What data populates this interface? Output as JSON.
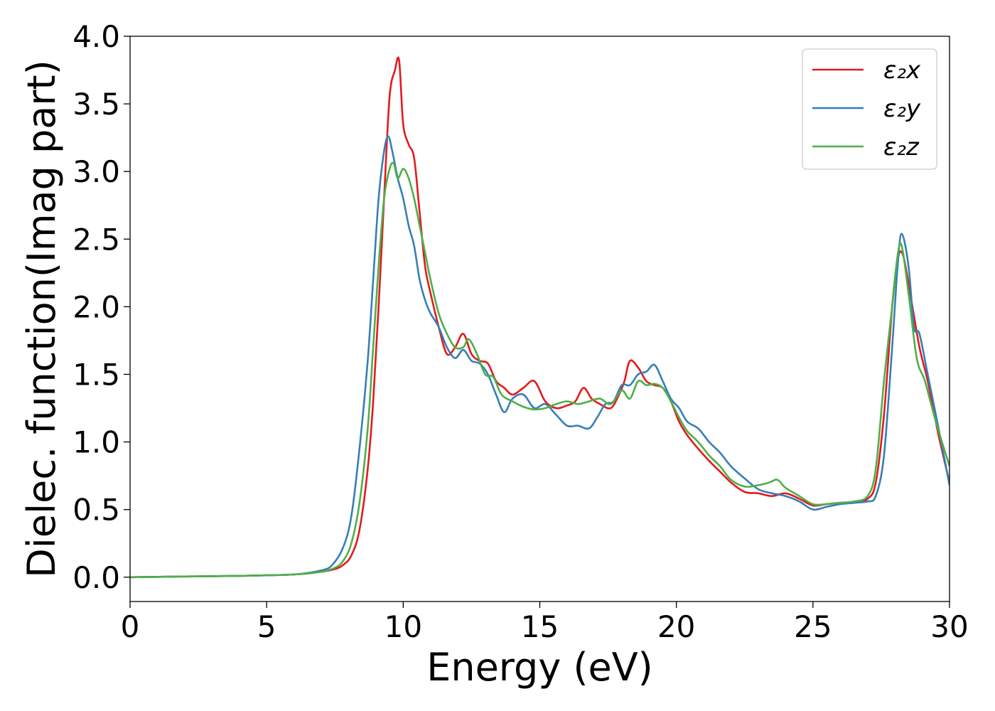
{
  "chart_data": {
    "type": "line",
    "title": "",
    "xlabel": "Energy (eV)",
    "ylabel": "Dielec. function(Imag part)",
    "xlim": [
      0,
      30
    ],
    "ylim": [
      -0.18,
      4.0
    ],
    "xticks": [
      0,
      5,
      10,
      15,
      20,
      25,
      30
    ],
    "yticks": [
      0.0,
      0.5,
      1.0,
      1.5,
      2.0,
      2.5,
      3.0,
      3.5,
      4.0
    ],
    "xtick_labels": [
      "0",
      "5",
      "10",
      "15",
      "20",
      "25",
      "30"
    ],
    "ytick_labels": [
      "0.0",
      "0.5",
      "1.0",
      "1.5",
      "2.0",
      "2.5",
      "3.0",
      "3.5",
      "4.0"
    ],
    "grid": false,
    "legend_position": "top-right",
    "series": [
      {
        "name": "ε₂x",
        "color": "#e41a1c",
        "x": [
          0,
          2,
          4,
          6,
          7,
          7.5,
          7.8,
          8.1,
          8.4,
          8.7,
          8.9,
          9.1,
          9.3,
          9.5,
          9.7,
          9.85,
          10.0,
          10.2,
          10.4,
          10.6,
          10.8,
          11.0,
          11.3,
          11.6,
          11.9,
          12.2,
          12.5,
          12.8,
          13.1,
          13.4,
          13.7,
          14.0,
          14.4,
          14.8,
          15.2,
          15.6,
          16.0,
          16.3,
          16.6,
          16.9,
          17.2,
          17.6,
          17.9,
          18.1,
          18.3,
          18.6,
          18.9,
          19.2,
          19.5,
          19.8,
          20.1,
          20.4,
          20.8,
          21.2,
          21.6,
          22.0,
          22.5,
          23.0,
          23.5,
          24.0,
          24.5,
          25.0,
          25.5,
          26.0,
          26.5,
          27.0,
          27.3,
          27.6,
          27.9,
          28.1,
          28.3,
          28.6,
          28.9,
          29.2,
          29.6,
          30.0
        ],
        "y": [
          0.0,
          0.005,
          0.01,
          0.02,
          0.04,
          0.06,
          0.09,
          0.16,
          0.35,
          0.8,
          1.3,
          2.0,
          2.8,
          3.55,
          3.75,
          3.82,
          3.35,
          3.2,
          3.1,
          2.7,
          2.3,
          2.1,
          1.85,
          1.65,
          1.7,
          1.8,
          1.65,
          1.6,
          1.58,
          1.45,
          1.4,
          1.35,
          1.4,
          1.45,
          1.3,
          1.25,
          1.27,
          1.3,
          1.4,
          1.32,
          1.28,
          1.25,
          1.35,
          1.45,
          1.6,
          1.55,
          1.45,
          1.42,
          1.4,
          1.3,
          1.15,
          1.05,
          0.95,
          0.86,
          0.78,
          0.7,
          0.63,
          0.62,
          0.6,
          0.62,
          0.58,
          0.53,
          0.54,
          0.55,
          0.55,
          0.58,
          0.7,
          1.2,
          2.0,
          2.35,
          2.38,
          2.05,
          1.7,
          1.45,
          1.05,
          0.7
        ]
      },
      {
        "name": "ε₂y",
        "color": "#377eb8",
        "x": [
          0,
          2,
          4,
          6,
          7,
          7.4,
          7.8,
          8.1,
          8.4,
          8.7,
          8.9,
          9.1,
          9.3,
          9.45,
          9.6,
          9.8,
          10.0,
          10.2,
          10.4,
          10.6,
          10.8,
          11.0,
          11.3,
          11.6,
          11.9,
          12.2,
          12.5,
          12.8,
          13.1,
          13.4,
          13.7,
          14.0,
          14.4,
          14.8,
          15.2,
          15.6,
          16.0,
          16.4,
          16.8,
          17.1,
          17.4,
          17.7,
          18.0,
          18.3,
          18.6,
          18.9,
          19.2,
          19.5,
          19.8,
          20.1,
          20.4,
          20.8,
          21.2,
          21.6,
          22.0,
          22.5,
          23.0,
          23.5,
          24.0,
          24.5,
          25.0,
          25.5,
          26.0,
          26.5,
          27.0,
          27.3,
          27.6,
          27.9,
          28.1,
          28.25,
          28.5,
          28.7,
          28.9,
          29.2,
          29.6,
          30.0
        ],
        "y": [
          0.0,
          0.005,
          0.01,
          0.02,
          0.05,
          0.09,
          0.22,
          0.45,
          0.95,
          1.6,
          2.2,
          2.8,
          3.15,
          3.26,
          3.15,
          2.95,
          2.8,
          2.6,
          2.45,
          2.2,
          2.05,
          1.95,
          1.85,
          1.7,
          1.62,
          1.68,
          1.6,
          1.58,
          1.5,
          1.35,
          1.22,
          1.32,
          1.35,
          1.25,
          1.28,
          1.2,
          1.12,
          1.12,
          1.1,
          1.18,
          1.28,
          1.3,
          1.42,
          1.42,
          1.5,
          1.52,
          1.57,
          1.45,
          1.32,
          1.25,
          1.15,
          1.1,
          1.0,
          0.92,
          0.82,
          0.73,
          0.65,
          0.62,
          0.6,
          0.56,
          0.5,
          0.52,
          0.54,
          0.55,
          0.56,
          0.6,
          0.9,
          1.7,
          2.3,
          2.54,
          2.3,
          1.85,
          1.8,
          1.5,
          1.1,
          0.68
        ]
      },
      {
        "name": "ε₂z",
        "color": "#4daf4a",
        "x": [
          0,
          2,
          4,
          6,
          7,
          7.5,
          7.8,
          8.1,
          8.4,
          8.7,
          8.9,
          9.1,
          9.3,
          9.5,
          9.65,
          9.8,
          10.0,
          10.2,
          10.4,
          10.6,
          10.8,
          11.0,
          11.3,
          11.6,
          11.9,
          12.2,
          12.4,
          12.7,
          13.0,
          13.3,
          13.6,
          14.0,
          14.4,
          14.8,
          15.2,
          15.6,
          16.0,
          16.4,
          16.8,
          17.2,
          17.6,
          18.0,
          18.3,
          18.6,
          18.9,
          19.2,
          19.5,
          19.8,
          20.1,
          20.4,
          20.8,
          21.2,
          21.6,
          22.0,
          22.5,
          23.0,
          23.4,
          23.7,
          24.0,
          24.5,
          25.0,
          25.5,
          26.0,
          26.5,
          27.0,
          27.3,
          27.6,
          27.9,
          28.1,
          28.25,
          28.5,
          28.8,
          29.1,
          29.5,
          30.0
        ],
        "y": [
          0.0,
          0.005,
          0.01,
          0.02,
          0.04,
          0.07,
          0.12,
          0.25,
          0.55,
          1.1,
          1.7,
          2.3,
          2.8,
          3.02,
          3.06,
          2.95,
          3.02,
          2.95,
          2.8,
          2.6,
          2.4,
          2.2,
          1.95,
          1.8,
          1.7,
          1.7,
          1.76,
          1.65,
          1.5,
          1.48,
          1.35,
          1.3,
          1.26,
          1.24,
          1.25,
          1.28,
          1.3,
          1.28,
          1.3,
          1.32,
          1.28,
          1.38,
          1.32,
          1.45,
          1.42,
          1.43,
          1.4,
          1.3,
          1.18,
          1.08,
          1.0,
          0.9,
          0.82,
          0.72,
          0.67,
          0.68,
          0.7,
          0.72,
          0.66,
          0.6,
          0.54,
          0.54,
          0.55,
          0.56,
          0.6,
          0.8,
          1.45,
          2.0,
          2.38,
          2.45,
          2.1,
          1.62,
          1.45,
          1.15,
          0.82
        ]
      }
    ]
  }
}
